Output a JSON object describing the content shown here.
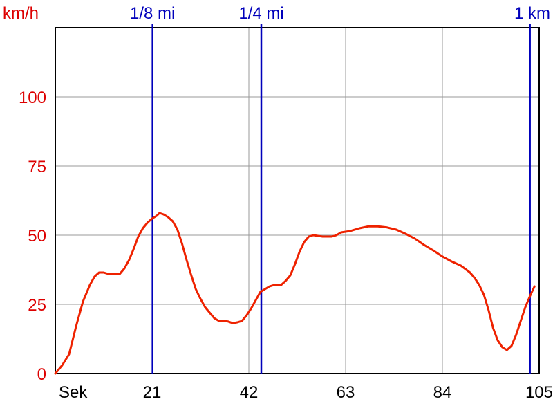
{
  "chart_data": {
    "type": "line",
    "ylabel": "km/h",
    "xlabel": "Sek",
    "xlim": [
      0,
      105
    ],
    "ylim": [
      0,
      125
    ],
    "x_ticks": [
      21,
      42,
      63,
      84,
      105
    ],
    "y_ticks": [
      0,
      25,
      50,
      75,
      100
    ],
    "y_tick_labels": [
      "0",
      "25",
      "50",
      "75",
      "100"
    ],
    "x_tick_labels": [
      "21",
      "42",
      "63",
      "84",
      "105"
    ],
    "grid": true,
    "colors": {
      "series": "#ee2200",
      "markers": "#0000bb",
      "axis_labels_y": "#dd0000",
      "axis_labels_x": "#000000",
      "grid": "#999999"
    },
    "distance_markers": [
      {
        "label": "1/8 mi",
        "x": 21.1
      },
      {
        "label": "1/4 mi",
        "x": 44.7
      },
      {
        "label": "1 km",
        "x": 103.0
      }
    ],
    "series": [
      {
        "points": [
          [
            0,
            0
          ],
          [
            1.5,
            3
          ],
          [
            3,
            7
          ],
          [
            4.5,
            17
          ],
          [
            6,
            26
          ],
          [
            7.5,
            32
          ],
          [
            8.5,
            35
          ],
          [
            9.5,
            36.5
          ],
          [
            10.5,
            36.5
          ],
          [
            11.5,
            36
          ],
          [
            13,
            36
          ],
          [
            14,
            36
          ],
          [
            15,
            38
          ],
          [
            16,
            41
          ],
          [
            17,
            45
          ],
          [
            18,
            49.5
          ],
          [
            19,
            52.5
          ],
          [
            20,
            54.5
          ],
          [
            21,
            56
          ],
          [
            22,
            57
          ],
          [
            22.6,
            58
          ],
          [
            23.5,
            57.5
          ],
          [
            24.5,
            56.5
          ],
          [
            25.5,
            55
          ],
          [
            26.5,
            52
          ],
          [
            27.5,
            47
          ],
          [
            28.5,
            41
          ],
          [
            29.5,
            35.5
          ],
          [
            30.5,
            30.5
          ],
          [
            31.5,
            27
          ],
          [
            32.5,
            24
          ],
          [
            33.5,
            22
          ],
          [
            34.5,
            20
          ],
          [
            35.5,
            19
          ],
          [
            36.5,
            19
          ],
          [
            37.5,
            18.8
          ],
          [
            38.5,
            18.2
          ],
          [
            39.5,
            18.5
          ],
          [
            40.5,
            19
          ],
          [
            41.5,
            21
          ],
          [
            42.5,
            23.5
          ],
          [
            43.5,
            26.5
          ],
          [
            44.5,
            29.5
          ],
          [
            45.5,
            30.5
          ],
          [
            46.5,
            31.5
          ],
          [
            47.5,
            32
          ],
          [
            49,
            32
          ],
          [
            50,
            33.5
          ],
          [
            51,
            35.5
          ],
          [
            52,
            39.5
          ],
          [
            53,
            44
          ],
          [
            54,
            47.5
          ],
          [
            55,
            49.5
          ],
          [
            56,
            50
          ],
          [
            58,
            49.5
          ],
          [
            60,
            49.5
          ],
          [
            61,
            50
          ],
          [
            62,
            51
          ],
          [
            64,
            51.5
          ],
          [
            66,
            52.5
          ],
          [
            68,
            53.2
          ],
          [
            70,
            53.2
          ],
          [
            72,
            52.8
          ],
          [
            74,
            52
          ],
          [
            76,
            50.5
          ],
          [
            78,
            48.8
          ],
          [
            80,
            46.5
          ],
          [
            82,
            44.5
          ],
          [
            84,
            42.3
          ],
          [
            86,
            40.5
          ],
          [
            88,
            39
          ],
          [
            90,
            36.5
          ],
          [
            91,
            34.5
          ],
          [
            92,
            32
          ],
          [
            93,
            28.5
          ],
          [
            94,
            23
          ],
          [
            95,
            16.5
          ],
          [
            96,
            12
          ],
          [
            97,
            9.5
          ],
          [
            98,
            8.5
          ],
          [
            99,
            10
          ],
          [
            100,
            14
          ],
          [
            101,
            19
          ],
          [
            102,
            24
          ],
          [
            103,
            28
          ],
          [
            104,
            31.5
          ]
        ]
      }
    ]
  }
}
